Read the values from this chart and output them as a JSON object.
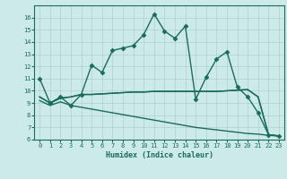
{
  "title": "",
  "xlabel": "Humidex (Indice chaleur)",
  "xlim": [
    -0.5,
    23.5
  ],
  "ylim": [
    6,
    17
  ],
  "yticks": [
    6,
    7,
    8,
    9,
    10,
    11,
    12,
    13,
    14,
    15,
    16
  ],
  "xticks": [
    0,
    1,
    2,
    3,
    4,
    5,
    6,
    7,
    8,
    9,
    10,
    11,
    12,
    13,
    14,
    15,
    16,
    17,
    18,
    19,
    20,
    21,
    22,
    23
  ],
  "background_color": "#cdeaea",
  "grid_color": "#b0d0d0",
  "line_color": "#1a6b5a",
  "series": [
    {
      "x": [
        0,
        1,
        2,
        3,
        4,
        5,
        6,
        7,
        8,
        9,
        10,
        11,
        12,
        13,
        14,
        15,
        16,
        17,
        18,
        19,
        20,
        21,
        22,
        23
      ],
      "y": [
        11,
        9,
        9.5,
        8.8,
        9.7,
        12.1,
        11.5,
        13.3,
        13.5,
        13.7,
        14.6,
        16.3,
        14.9,
        14.3,
        15.3,
        9.3,
        11.1,
        12.6,
        13.2,
        10.3,
        9.5,
        8.2,
        6.4,
        6.3
      ],
      "marker": "D",
      "markersize": 2.5,
      "linewidth": 1.0
    },
    {
      "x": [
        0,
        1,
        2,
        3,
        4,
        5,
        6,
        7,
        8,
        9,
        10,
        11,
        12,
        13,
        14,
        15,
        16,
        17,
        18,
        19,
        20,
        21,
        22,
        23
      ],
      "y": [
        9.5,
        9.0,
        9.4,
        9.5,
        9.7,
        9.7,
        9.75,
        9.8,
        9.85,
        9.9,
        9.9,
        9.95,
        9.95,
        9.95,
        9.95,
        9.95,
        9.95,
        9.95,
        10.0,
        10.05,
        10.1,
        9.5,
        6.4,
        6.3
      ],
      "marker": null,
      "markersize": 0,
      "linewidth": 1.0
    },
    {
      "x": [
        0,
        1,
        2,
        3,
        4,
        5,
        6,
        7,
        8,
        9,
        10,
        11,
        12,
        13,
        14,
        15,
        16,
        17,
        18,
        19,
        20,
        21,
        22,
        23
      ],
      "y": [
        9.5,
        9.0,
        9.4,
        9.5,
        9.7,
        9.7,
        9.75,
        9.8,
        9.85,
        9.9,
        9.9,
        9.95,
        9.95,
        9.95,
        9.95,
        9.95,
        9.95,
        9.95,
        10.0,
        10.05,
        10.1,
        9.5,
        6.4,
        6.3
      ],
      "marker": null,
      "markersize": 0,
      "linewidth": 1.0
    },
    {
      "x": [
        0,
        1,
        2,
        3,
        4,
        5,
        6,
        7,
        8,
        9,
        10,
        11,
        12,
        13,
        14,
        15,
        16,
        17,
        18,
        19,
        20,
        21,
        22,
        23
      ],
      "y": [
        9.2,
        8.8,
        9.1,
        8.8,
        8.65,
        8.5,
        8.35,
        8.2,
        8.05,
        7.9,
        7.75,
        7.6,
        7.45,
        7.3,
        7.15,
        7.0,
        6.9,
        6.8,
        6.7,
        6.6,
        6.5,
        6.45,
        6.35,
        6.3
      ],
      "marker": null,
      "markersize": 0,
      "linewidth": 1.0
    }
  ]
}
